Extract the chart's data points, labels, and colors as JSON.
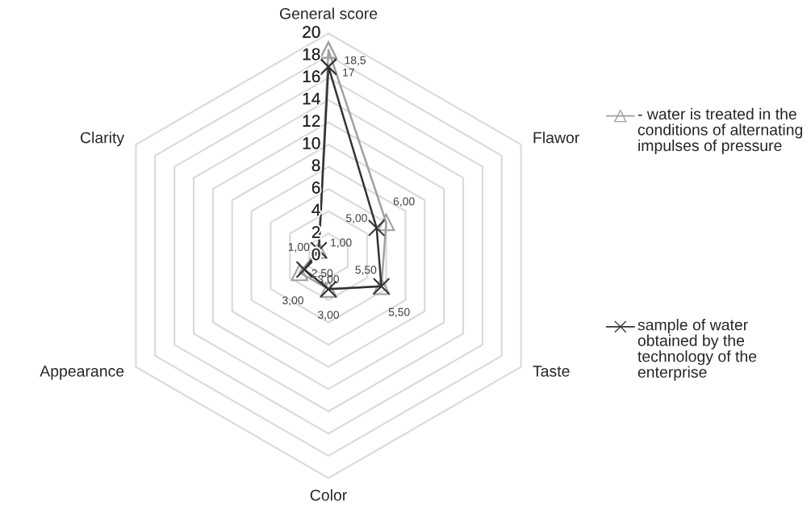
{
  "chart_data": {
    "type": "radar",
    "categories": [
      "General score",
      "Flawor",
      "Taste",
      "Color",
      "Appearance",
      "Clarity"
    ],
    "ylim": [
      0,
      20
    ],
    "yticks": [
      0,
      2,
      4,
      6,
      8,
      10,
      12,
      14,
      16,
      18,
      20
    ],
    "grid": true,
    "legend": "right",
    "series": [
      {
        "name": "- water is treated in the conditions of alternating impulses of pressure",
        "color": "#a0a0a0",
        "marker": "triangle",
        "values": [
          18.5,
          6,
          5.5,
          3,
          3,
          1
        ],
        "value_labels": [
          "18,5",
          "6,00",
          "5,50",
          "3,00",
          "3,00",
          "1,00"
        ]
      },
      {
        "name": "sample of water obtained by the technology of the enterprise",
        "color": "#333333",
        "marker": "cross",
        "values": [
          17,
          5,
          5.5,
          3,
          2.5,
          1
        ],
        "value_labels": [
          "17",
          "5,00",
          "5,50",
          "3,00",
          "2,50",
          "1,00"
        ]
      }
    ]
  }
}
